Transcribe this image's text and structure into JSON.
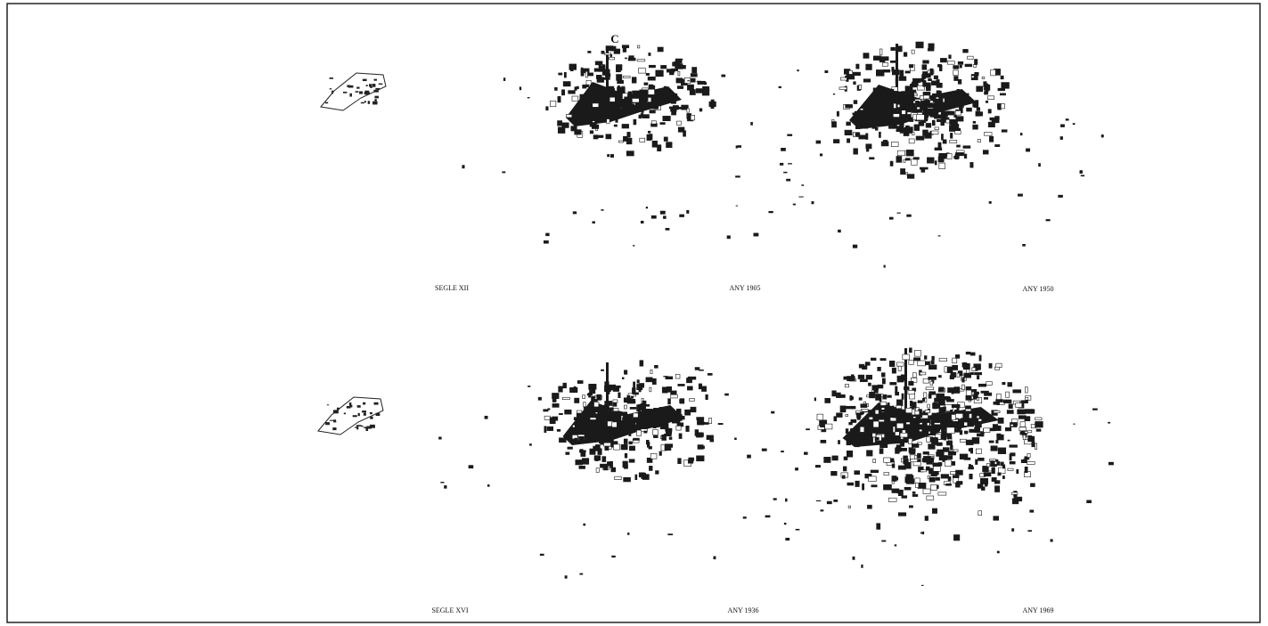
{
  "panels": [
    {
      "label": "SEGLE XII"
    },
    {
      "label": "ANY 1905"
    },
    {
      "label": "ANY 1950"
    },
    {
      "label": "SEGLE XVI"
    },
    {
      "label": "ANY 1936"
    },
    {
      "label": "ANY 1969"
    }
  ],
  "annotation": "C"
}
